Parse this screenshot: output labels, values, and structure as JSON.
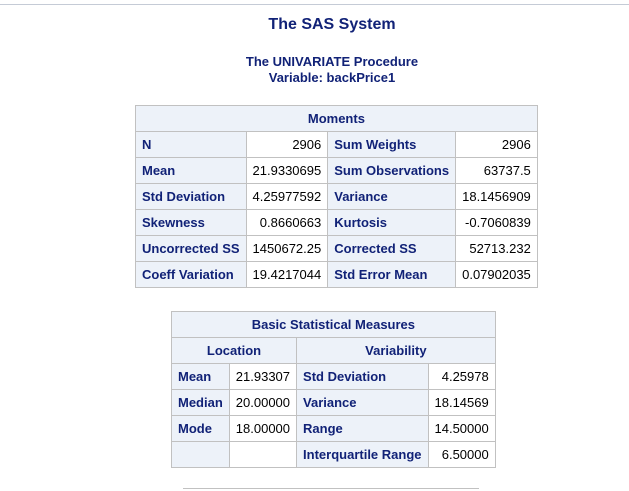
{
  "report": {
    "system_title": "The SAS System",
    "procedure_title": "The UNIVARIATE Procedure",
    "variable_line": "Variable: backPrice1"
  },
  "moments": {
    "caption": "Moments",
    "rows": [
      {
        "label1": "N",
        "value1": "2906",
        "label2": "Sum Weights",
        "value2": "2906"
      },
      {
        "label1": "Mean",
        "value1": "21.9330695",
        "label2": "Sum Observations",
        "value2": "63737.5"
      },
      {
        "label1": "Std Deviation",
        "value1": "4.25977592",
        "label2": "Variance",
        "value2": "18.1456909"
      },
      {
        "label1": "Skewness",
        "value1": "0.8660663",
        "label2": "Kurtosis",
        "value2": "-0.7060839"
      },
      {
        "label1": "Uncorrected SS",
        "value1": "1450672.25",
        "label2": "Corrected SS",
        "value2": "52713.232"
      },
      {
        "label1": "Coeff Variation",
        "value1": "19.4217044",
        "label2": "Std Error Mean",
        "value2": "0.07902035"
      }
    ]
  },
  "basic_measures": {
    "caption": "Basic Statistical Measures",
    "location_header": "Location",
    "variability_header": "Variability",
    "rows": [
      {
        "loc_label": "Mean",
        "loc_value": "21.93307",
        "var_label": "Std Deviation",
        "var_value": "4.25978"
      },
      {
        "loc_label": "Median",
        "loc_value": "20.00000",
        "var_label": "Variance",
        "var_value": "18.14569"
      },
      {
        "loc_label": "Mode",
        "loc_value": "18.00000",
        "var_label": "Range",
        "var_value": "14.50000"
      },
      {
        "loc_label": "",
        "loc_value": "",
        "var_label": "Interquartile Range",
        "var_value": "6.50000"
      }
    ]
  },
  "colors": {
    "header_background": "#edf2f9",
    "header_text": "#112277",
    "border": "#c1c1c1"
  }
}
